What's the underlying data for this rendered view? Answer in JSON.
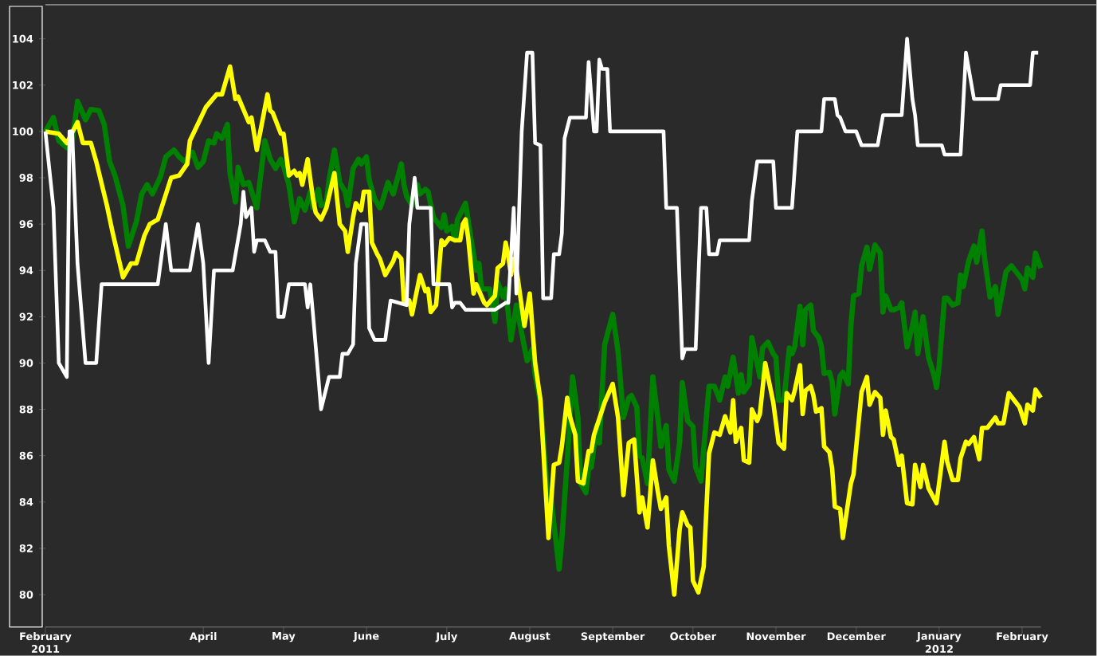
{
  "chart_data": {
    "type": "line",
    "xlim": [
      "2011-02-01",
      "2012-02-08"
    ],
    "ylim": [
      78.6,
      105.4
    ],
    "xticks": [
      {
        "value": "2011-02-01",
        "label": "February"
      },
      {
        "value": "2011-04-01",
        "label": "April"
      },
      {
        "value": "2011-05-01",
        "label": "May"
      },
      {
        "value": "2011-06-01",
        "label": "June"
      },
      {
        "value": "2011-07-01",
        "label": "July"
      },
      {
        "value": "2011-08-01",
        "label": "August"
      },
      {
        "value": "2011-09-01",
        "label": "September"
      },
      {
        "value": "2011-10-01",
        "label": "October"
      },
      {
        "value": "2011-11-01",
        "label": "November"
      },
      {
        "value": "2011-12-01",
        "label": "December"
      },
      {
        "value": "2012-01-01",
        "label": "January"
      },
      {
        "value": "2012-02-01",
        "label": "February"
      }
    ],
    "yticks": [
      80,
      82,
      84,
      86,
      88,
      90,
      92,
      94,
      96,
      98,
      100,
      102,
      104
    ],
    "annotations": [
      "2011",
      "2012"
    ],
    "series": [
      {
        "color": "#008000",
        "x": [
          "2011-02-01",
          "2011-02-02",
          "2011-02-04",
          "2011-02-06",
          "2011-02-09",
          "2011-02-11",
          "2011-02-13",
          "2011-02-16",
          "2011-02-18",
          "2011-02-21",
          "2011-02-23",
          "2011-02-25",
          "2011-02-27",
          "2011-03-02",
          "2011-03-04",
          "2011-03-07",
          "2011-03-09",
          "2011-03-11",
          "2011-03-13",
          "2011-03-16",
          "2011-03-18",
          "2011-03-21",
          "2011-03-23",
          "2011-03-25",
          "2011-03-28",
          "2011-03-30",
          "2011-04-01",
          "2011-04-03",
          "2011-04-05",
          "2011-04-06",
          "2011-04-08",
          "2011-04-10",
          "2011-04-11",
          "2011-04-13",
          "2011-04-14",
          "2011-04-16",
          "2011-04-18",
          "2011-04-21",
          "2011-04-24",
          "2011-04-26",
          "2011-04-28",
          "2011-04-30",
          "2011-05-01",
          "2011-05-03",
          "2011-05-05",
          "2011-05-07",
          "2011-05-09",
          "2011-05-11",
          "2011-05-12",
          "2011-05-14",
          "2011-05-15",
          "2011-05-17",
          "2011-05-18",
          "2011-05-20",
          "2011-05-22",
          "2011-05-24",
          "2011-05-25",
          "2011-05-27",
          "2011-05-29",
          "2011-05-30",
          "2011-06-01",
          "2011-06-02",
          "2011-06-04",
          "2011-06-06",
          "2011-06-07",
          "2011-06-09",
          "2011-06-11",
          "2011-06-14",
          "2011-06-15",
          "2011-06-16",
          "2011-06-18",
          "2011-06-20",
          "2011-06-21",
          "2011-06-23",
          "2011-06-24",
          "2011-06-26",
          "2011-06-29",
          "2011-06-30",
          "2011-07-01",
          "2011-07-03",
          "2011-07-04",
          "2011-07-05",
          "2011-07-08",
          "2011-07-10",
          "2011-07-12",
          "2011-07-13",
          "2011-07-14",
          "2011-07-17",
          "2011-07-19",
          "2011-07-20",
          "2011-07-22",
          "2011-07-23",
          "2011-07-25",
          "2011-07-27",
          "2011-07-31",
          "2011-08-02",
          "2011-08-03",
          "2011-08-05",
          "2011-08-07",
          "2011-08-08",
          "2011-08-09",
          "2011-08-12",
          "2011-08-13",
          "2011-08-16",
          "2011-08-17",
          "2011-08-19",
          "2011-08-20",
          "2011-08-22",
          "2011-08-23",
          "2011-08-24",
          "2011-08-26",
          "2011-08-27",
          "2011-08-29",
          "2011-09-01",
          "2011-09-03",
          "2011-09-05",
          "2011-09-07",
          "2011-09-08",
          "2011-09-10",
          "2011-09-11",
          "2011-09-12",
          "2011-09-14",
          "2011-09-16",
          "2011-09-18",
          "2011-09-19",
          "2011-09-21",
          "2011-09-22",
          "2011-09-24",
          "2011-09-26",
          "2011-09-27",
          "2011-09-29",
          "2011-10-01",
          "2011-10-02",
          "2011-10-04",
          "2011-10-06",
          "2011-10-07",
          "2011-10-09",
          "2011-10-11",
          "2011-10-13",
          "2011-10-14",
          "2011-10-16",
          "2011-10-18",
          "2011-10-19",
          "2011-10-20",
          "2011-10-22",
          "2011-10-23",
          "2011-10-26",
          "2011-10-27",
          "2011-10-29",
          "2011-10-31",
          "2011-11-01",
          "2011-11-02",
          "2011-11-04",
          "2011-11-06",
          "2011-11-07",
          "2011-11-08",
          "2011-11-10",
          "2011-11-11",
          "2011-11-12",
          "2011-11-14",
          "2011-11-15",
          "2011-11-17",
          "2011-11-18",
          "2011-11-19",
          "2011-11-21",
          "2011-11-22",
          "2011-11-23",
          "2011-11-25",
          "2011-11-26",
          "2011-11-28",
          "2011-11-29",
          "2011-11-30",
          "2011-12-02",
          "2011-12-03",
          "2011-12-05",
          "2011-12-06",
          "2011-12-08",
          "2011-12-10",
          "2011-12-11",
          "2011-12-12",
          "2011-12-14",
          "2011-12-15",
          "2011-12-17",
          "2011-12-18",
          "2011-12-20",
          "2011-12-22",
          "2011-12-23",
          "2011-12-24",
          "2011-12-26",
          "2011-12-28",
          "2011-12-30",
          "2011-12-31",
          "2012-01-01",
          "2012-01-03",
          "2012-01-04",
          "2012-01-06",
          "2012-01-08",
          "2012-01-09",
          "2012-01-10",
          "2012-01-12",
          "2012-01-14",
          "2012-01-15",
          "2012-01-17",
          "2012-01-18",
          "2012-01-20",
          "2012-01-22",
          "2012-01-23",
          "2012-01-26",
          "2012-01-28",
          "2012-01-30",
          "2012-02-01",
          "2012-02-02",
          "2012-02-03",
          "2012-02-05",
          "2012-02-06",
          "2012-02-08"
        ],
        "values": [
          100,
          100.2,
          100.6,
          99.6,
          99.3,
          99.5,
          101.3,
          100.5,
          100.95,
          100.9,
          100.3,
          98.7,
          98.1,
          96.8,
          95.05,
          96.1,
          97.3,
          97.7,
          97.3,
          98.05,
          98.9,
          99.2,
          98.9,
          98.7,
          99.1,
          98.45,
          98.7,
          99.6,
          99.5,
          99.9,
          99.7,
          100.3,
          98.2,
          96.95,
          98.45,
          97.7,
          97.8,
          96.7,
          99.6,
          98.8,
          98.4,
          98.8,
          98.5,
          97.7,
          96.1,
          97.1,
          96.6,
          97.4,
          96.7,
          97.5,
          96.8,
          96.9,
          97.9,
          99.2,
          97.8,
          97.4,
          96.8,
          98.4,
          98.8,
          98.6,
          98.9,
          97.9,
          97.1,
          96.7,
          97,
          97.8,
          97.3,
          98.6,
          97.7,
          97.2,
          96.8,
          97.7,
          97.3,
          97.5,
          97.4,
          96.3,
          95.85,
          96.4,
          95.7,
          95.9,
          95.3,
          96.2,
          96.9,
          95.4,
          94,
          94.3,
          93.2,
          93.2,
          91.8,
          93.5,
          92.85,
          93.2,
          91,
          92.5,
          90.1,
          90.6,
          89.5,
          88.3,
          85.3,
          83.1,
          84.1,
          81.1,
          82.4,
          87.5,
          89.4,
          87.65,
          84.8,
          84.4,
          85.45,
          85.5,
          87.3,
          86.55,
          90.8,
          92.1,
          90.5,
          87.65,
          88.5,
          88.6,
          88.1,
          86,
          85.9,
          84.8,
          89.4,
          87.5,
          86.4,
          87.3,
          85.4,
          84.9,
          86.55,
          89.15,
          87.5,
          87.25,
          85.5,
          84.9,
          87.65,
          89,
          89,
          88.4,
          89.4,
          89,
          90.25,
          88.7,
          89.5,
          88.75,
          89.1,
          91.1,
          89.4,
          90.65,
          90.9,
          90.4,
          90.25,
          88.4,
          88.4,
          90.65,
          90.4,
          90.7,
          92.45,
          90.8,
          92.3,
          92.5,
          91.4,
          91.1,
          90.7,
          89.55,
          89.6,
          89.2,
          87.8,
          89.45,
          89.6,
          89.1,
          91.6,
          92.9,
          93,
          94.2,
          95,
          94.05,
          95.1,
          94.75,
          92.2,
          92.9,
          92.3,
          92.3,
          92.4,
          92.6,
          90.7,
          91.6,
          92.2,
          90.4,
          92,
          90.25,
          89.5,
          88.95,
          89.9,
          92.8,
          92.8,
          92.5,
          92.6,
          93.8,
          93.3,
          94.4,
          95.05,
          94.35,
          95.7,
          94.5,
          92.85,
          93.3,
          92.1,
          93.95,
          94.2,
          93.9,
          93.6,
          93.2,
          94.1,
          93.7,
          94.75,
          94.1
        ]
      },
      {
        "color": "#ffff00",
        "x": [
          "2011-02-01",
          "2011-02-06",
          "2011-02-09",
          "2011-02-13",
          "2011-02-15",
          "2011-02-18",
          "2011-02-20",
          "2011-02-24",
          "2011-02-26",
          "2011-03-02",
          "2011-03-05",
          "2011-03-07",
          "2011-03-10",
          "2011-03-12",
          "2011-03-15",
          "2011-03-20",
          "2011-03-23",
          "2011-03-26",
          "2011-03-27",
          "2011-04-02",
          "2011-04-06",
          "2011-04-08",
          "2011-04-11",
          "2011-04-13",
          "2011-04-14",
          "2011-04-18",
          "2011-04-19",
          "2011-04-21",
          "2011-04-25",
          "2011-04-26",
          "2011-04-27",
          "2011-04-30",
          "2011-05-01",
          "2011-05-03",
          "2011-05-05",
          "2011-05-06",
          "2011-05-07",
          "2011-05-08",
          "2011-05-10",
          "2011-05-12",
          "2011-05-13",
          "2011-05-15",
          "2011-05-17",
          "2011-05-20",
          "2011-05-22",
          "2011-05-24",
          "2011-05-25",
          "2011-05-27",
          "2011-05-28",
          "2011-05-30",
          "2011-05-31",
          "2011-06-02",
          "2011-06-03",
          "2011-06-05",
          "2011-06-06",
          "2011-06-08",
          "2011-06-11",
          "2011-06-12",
          "2011-06-14",
          "2011-06-15",
          "2011-06-17",
          "2011-06-18",
          "2011-06-21",
          "2011-06-23",
          "2011-06-24",
          "2011-06-25",
          "2011-06-27",
          "2011-06-29",
          "2011-06-30",
          "2011-07-02",
          "2011-07-04",
          "2011-07-06",
          "2011-07-07",
          "2011-07-08",
          "2011-07-09",
          "2011-07-11",
          "2011-07-12",
          "2011-07-15",
          "2011-07-16",
          "2011-07-19",
          "2011-07-20",
          "2011-07-22",
          "2011-07-23",
          "2011-07-24",
          "2011-07-25",
          "2011-07-26",
          "2011-07-27",
          "2011-07-30",
          "2011-08-01",
          "2011-08-03",
          "2011-08-05",
          "2011-08-06",
          "2011-08-08",
          "2011-08-10",
          "2011-08-12",
          "2011-08-13",
          "2011-08-15",
          "2011-08-16",
          "2011-08-18",
          "2011-08-19",
          "2011-08-21",
          "2011-08-23",
          "2011-08-24",
          "2011-08-25",
          "2011-08-29",
          "2011-09-01",
          "2011-09-03",
          "2011-09-05",
          "2011-09-07",
          "2011-09-09",
          "2011-09-11",
          "2011-09-12",
          "2011-09-14",
          "2011-09-16",
          "2011-09-18",
          "2011-09-19",
          "2011-09-21",
          "2011-09-22",
          "2011-09-24",
          "2011-09-26",
          "2011-09-27",
          "2011-09-29",
          "2011-09-30",
          "2011-10-01",
          "2011-10-03",
          "2011-10-05",
          "2011-10-07",
          "2011-10-09",
          "2011-10-11",
          "2011-10-13",
          "2011-10-15",
          "2011-10-16",
          "2011-10-17",
          "2011-10-19",
          "2011-10-20",
          "2011-10-22",
          "2011-10-23",
          "2011-10-25",
          "2011-10-26",
          "2011-10-28",
          "2011-10-31",
          "2011-11-02",
          "2011-11-04",
          "2011-11-05",
          "2011-11-07",
          "2011-11-08",
          "2011-11-10",
          "2011-11-11",
          "2011-11-12",
          "2011-11-14",
          "2011-11-15",
          "2011-11-16",
          "2011-11-18",
          "2011-11-19",
          "2011-11-21",
          "2011-11-22",
          "2011-11-23",
          "2011-11-25",
          "2011-11-26",
          "2011-11-29",
          "2011-11-30",
          "2011-12-03",
          "2011-12-05",
          "2011-12-06",
          "2011-12-08",
          "2011-12-10",
          "2011-12-11",
          "2011-12-12",
          "2011-12-14",
          "2011-12-15",
          "2011-12-17",
          "2011-12-18",
          "2011-12-20",
          "2011-12-22",
          "2011-12-23",
          "2011-12-25",
          "2011-12-26",
          "2011-12-28",
          "2011-12-31",
          "2012-01-03",
          "2012-01-04",
          "2012-01-06",
          "2012-01-08",
          "2012-01-09",
          "2012-01-11",
          "2012-01-12",
          "2012-01-14",
          "2012-01-16",
          "2012-01-17",
          "2012-01-19",
          "2012-01-22",
          "2012-01-23",
          "2012-01-25",
          "2012-01-27",
          "2012-01-29",
          "2012-01-31",
          "2012-02-02",
          "2012-02-03",
          "2012-02-05",
          "2012-02-06",
          "2012-02-08"
        ],
        "values": [
          100,
          99.9,
          99.5,
          100.4,
          99.5,
          99.5,
          98.7,
          96.8,
          95.7,
          93.7,
          94.3,
          94.3,
          95.5,
          96,
          96.2,
          98,
          98.1,
          98.6,
          99.6,
          101.05,
          101.6,
          101.6,
          102.8,
          101.4,
          101.5,
          100.4,
          100.6,
          99.2,
          101.6,
          100.9,
          100.8,
          99.9,
          99.9,
          98.1,
          98.3,
          98.1,
          98.2,
          97.7,
          98.8,
          97.1,
          96.5,
          96.2,
          96.7,
          98.2,
          96,
          95.7,
          94.8,
          96.3,
          96.9,
          96.6,
          97.4,
          97.4,
          95.2,
          94.7,
          94.5,
          93.8,
          94.4,
          94.75,
          94.5,
          92.6,
          92.7,
          92.1,
          93.8,
          93.1,
          93.2,
          92.2,
          92.5,
          95.3,
          95.1,
          95.4,
          95.3,
          95.3,
          96,
          96.2,
          95.4,
          93,
          93.4,
          92.6,
          92.5,
          92.9,
          94.1,
          94.3,
          95.2,
          94.6,
          93.8,
          94.5,
          94.1,
          91.6,
          93,
          90,
          88.4,
          86.4,
          82.45,
          85.6,
          85.7,
          86.4,
          88.5,
          87.7,
          86.9,
          84.9,
          84.8,
          86.2,
          86.2,
          86.9,
          88.3,
          89.1,
          87.65,
          84.3,
          86.55,
          86.7,
          83.55,
          84.2,
          82.9,
          85.8,
          84.35,
          83.7,
          84.2,
          82.1,
          80,
          82.8,
          83.55,
          83,
          82.9,
          80.6,
          80.1,
          81.2,
          86.1,
          87,
          86.9,
          87.7,
          87,
          88.4,
          86.6,
          87.2,
          85.8,
          85.7,
          88,
          87.5,
          87.8,
          90,
          88.3,
          86.55,
          86.3,
          88.7,
          88.4,
          88.8,
          89.9,
          87.8,
          88.8,
          89,
          88.6,
          87.9,
          88.05,
          86.4,
          86.15,
          85.45,
          83.8,
          83.7,
          82.45,
          84.8,
          85.2,
          88.75,
          89.4,
          88.2,
          88.75,
          88.5,
          86.9,
          87.95,
          86.8,
          86.7,
          85.6,
          86,
          83.95,
          83.9,
          85.6,
          84.65,
          85.6,
          84.6,
          83.95,
          86.6,
          85.75,
          84.95,
          84.95,
          85.9,
          86.6,
          86.5,
          86.8,
          85.85,
          87.2,
          87.2,
          87.65,
          87.4,
          87.4,
          88.7,
          88.4,
          88.1,
          87.4,
          88.2,
          87.95,
          88.85,
          88.5
        ]
      },
      {
        "color": "#ffffff",
        "x": [
          "2011-02-01",
          "2011-02-04",
          "2011-02-06",
          "2011-02-09",
          "2011-02-10",
          "2011-02-11",
          "2011-02-13",
          "2011-02-16",
          "2011-02-20",
          "2011-02-22",
          "2011-03-15",
          "2011-03-18",
          "2011-03-20",
          "2011-03-27",
          "2011-03-30",
          "2011-04-01",
          "2011-04-03",
          "2011-04-05",
          "2011-04-12",
          "2011-04-15",
          "2011-04-16",
          "2011-04-17",
          "2011-04-19",
          "2011-04-20",
          "2011-04-21",
          "2011-04-24",
          "2011-04-26",
          "2011-04-28",
          "2011-04-29",
          "2011-05-01",
          "2011-05-03",
          "2011-05-09",
          "2011-05-10",
          "2011-05-11",
          "2011-05-12",
          "2011-05-14",
          "2011-05-15",
          "2011-05-18",
          "2011-05-22",
          "2011-05-23",
          "2011-05-25",
          "2011-05-27",
          "2011-05-28",
          "2011-05-30",
          "2011-06-01",
          "2011-06-02",
          "2011-06-04",
          "2011-06-08",
          "2011-06-10",
          "2011-06-16",
          "2011-06-17",
          "2011-06-19",
          "2011-06-20",
          "2011-06-25",
          "2011-06-26",
          "2011-07-02",
          "2011-07-03",
          "2011-07-04",
          "2011-07-06",
          "2011-07-08",
          "2011-07-19",
          "2011-07-23",
          "2011-07-24",
          "2011-07-26",
          "2011-07-27",
          "2011-07-29",
          "2011-07-31",
          "2011-08-02",
          "2011-08-03",
          "2011-08-05",
          "2011-08-06",
          "2011-08-09",
          "2011-08-10",
          "2011-08-12",
          "2011-08-13",
          "2011-08-14",
          "2011-08-16",
          "2011-08-22",
          "2011-08-23",
          "2011-08-25",
          "2011-08-26",
          "2011-08-27",
          "2011-08-28",
          "2011-08-30",
          "2011-08-31",
          "2011-09-20",
          "2011-09-21",
          "2011-09-25",
          "2011-09-27",
          "2011-09-28",
          "2011-10-02",
          "2011-10-04",
          "2011-10-06",
          "2011-10-07",
          "2011-10-10",
          "2011-10-11",
          "2011-10-22",
          "2011-10-23",
          "2011-10-25",
          "2011-10-31",
          "2011-11-01",
          "2011-11-07",
          "2011-11-09",
          "2011-11-18",
          "2011-11-19",
          "2011-11-23",
          "2011-11-24",
          "2011-11-25",
          "2011-11-27",
          "2011-12-01",
          "2011-12-03",
          "2011-12-09",
          "2011-12-11",
          "2011-12-18",
          "2011-12-20",
          "2011-12-22",
          "2011-12-23",
          "2011-12-24",
          "2012-01-02",
          "2012-01-03",
          "2012-01-09",
          "2012-01-11",
          "2012-01-14",
          "2012-01-23",
          "2012-01-24",
          "2012-02-04",
          "2012-02-05",
          "2012-02-07"
        ],
        "values": [
          100,
          96.7,
          90,
          89.4,
          100,
          100,
          94.3,
          90,
          90,
          93.4,
          93.4,
          96,
          94,
          94,
          96,
          94.3,
          90,
          94,
          94,
          96,
          97.4,
          96.3,
          96.7,
          94.8,
          95.3,
          95.3,
          94.8,
          94.8,
          92,
          92,
          93.4,
          93.4,
          92.4,
          93.4,
          92.1,
          89.4,
          88,
          89.4,
          89.4,
          90.4,
          90.4,
          90.8,
          94.3,
          96,
          96,
          91.5,
          91,
          91,
          92.7,
          92.5,
          96,
          98,
          96.7,
          96.7,
          93.4,
          93.4,
          92.4,
          92.6,
          92.6,
          92.3,
          92.3,
          92.6,
          92.6,
          96.7,
          93,
          100,
          103.4,
          103.4,
          99.5,
          99.4,
          92.8,
          92.8,
          94.7,
          94.7,
          95.6,
          99.7,
          100.6,
          100.6,
          103,
          100,
          100,
          103.1,
          102.7,
          102.7,
          100,
          100,
          96.7,
          96.7,
          90.2,
          90.6,
          90.6,
          96.7,
          96.7,
          94.7,
          94.7,
          95.3,
          95.3,
          97,
          98.7,
          98.7,
          96.7,
          96.7,
          100,
          100,
          101.4,
          101.4,
          100.7,
          100.6,
          100,
          100,
          99.4,
          99.4,
          100.7,
          100.7,
          104,
          101.4,
          100.7,
          99.4,
          99.4,
          99,
          99,
          103.4,
          101.4,
          101.4,
          102,
          102,
          103.4,
          103.4
        ]
      }
    ]
  }
}
